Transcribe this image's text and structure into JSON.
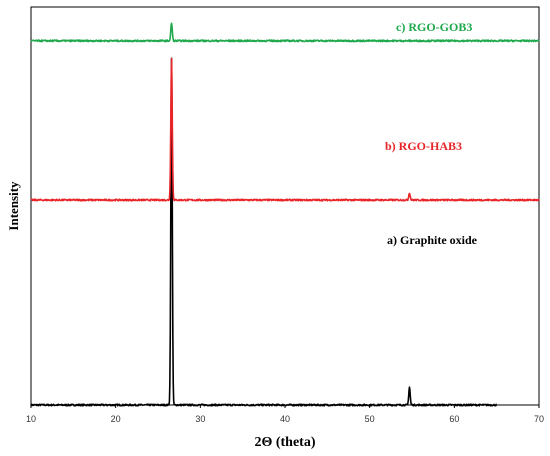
{
  "chart_data": {
    "type": "line",
    "title": "",
    "xlabel": "2Θ (theta)",
    "ylabel": "Intensity",
    "xlim": [
      10,
      70
    ],
    "xticks": [
      10,
      20,
      30,
      40,
      50,
      60,
      70
    ],
    "ylim": [
      0,
      1
    ],
    "y_ticks_shown": false,
    "grid": false,
    "legend": "none",
    "series": [
      {
        "name": "a) Graphite oxide",
        "color": "#000000",
        "baseline": 0.0,
        "x_end": 65,
        "peaks": [
          {
            "x": 26.6,
            "height": 0.87
          },
          {
            "x": 54.7,
            "height": 0.045
          }
        ]
      },
      {
        "name": "b) RGO-HAB3",
        "color": "#e8262a",
        "baseline": 0.515,
        "x_end": 70,
        "peaks": [
          {
            "x": 26.6,
            "height": 0.355
          },
          {
            "x": 54.7,
            "height": 0.018
          }
        ]
      },
      {
        "name": "c) RGO-GOB3",
        "color": "#1fa84c",
        "baseline": 0.915,
        "x_end": 70,
        "peaks": [
          {
            "x": 26.6,
            "height": 0.045
          }
        ]
      }
    ]
  }
}
